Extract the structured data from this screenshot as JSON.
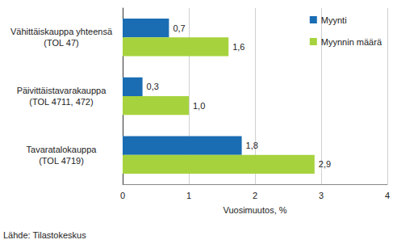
{
  "chart_data": {
    "type": "bar",
    "orientation": "horizontal",
    "categories": [
      "Vähittäiskauppa yhteensä\n(TOL 47)",
      "Päivittäistavarakauppa\n(TOL 4711, 472)",
      "Tavaratalokauppa\n(TOL 4719)"
    ],
    "series": [
      {
        "name": "Myynti",
        "color": "#1a6db3",
        "values": [
          0.7,
          0.3,
          1.8
        ],
        "value_labels": [
          "0,7",
          "0,3",
          "1,8"
        ]
      },
      {
        "name": "Myynnin määrä",
        "color": "#a6d33d",
        "values": [
          1.6,
          1.0,
          2.9
        ],
        "value_labels": [
          "1,6",
          "1,0",
          "2,9"
        ]
      }
    ],
    "x_label": "Vuosimuutos, %",
    "xlim": [
      0,
      4
    ],
    "xticks": [
      0,
      1,
      2,
      3,
      4
    ],
    "grid": true,
    "legend": "top-right",
    "data_labels": true,
    "source": "Lähde: Tilastokeskus"
  }
}
